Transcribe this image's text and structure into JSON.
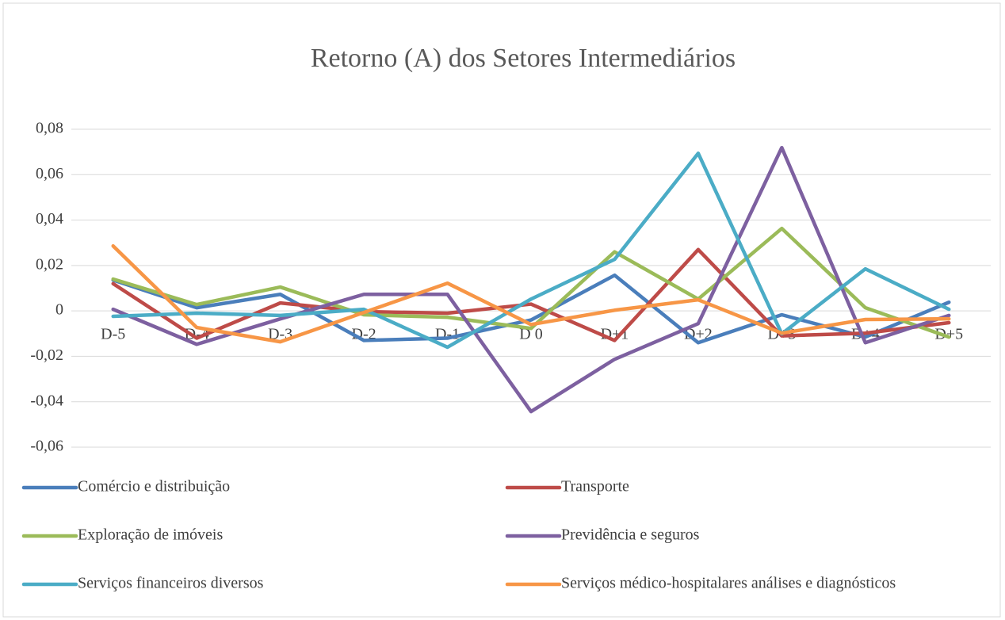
{
  "chart_data": {
    "type": "line",
    "title": "Retorno (A) dos Setores Intermediários",
    "categories": [
      "D-5",
      "D-4",
      "D-3",
      "D-2",
      "D-1",
      "D 0",
      "D+1",
      "D+2",
      "D+3",
      "D+4",
      "D+5"
    ],
    "series": [
      {
        "name": "Comércio e distribuição",
        "color": "#4a7ebb",
        "values": [
          0.0136,
          0.0014,
          0.0073,
          -0.013,
          -0.012,
          -0.004,
          0.0157,
          -0.014,
          -0.0017,
          -0.0115,
          0.0038
        ]
      },
      {
        "name": "Transporte",
        "color": "#be4b48",
        "values": [
          0.012,
          -0.012,
          0.0035,
          -0.0003,
          -0.001,
          0.003,
          -0.013,
          0.027,
          -0.011,
          -0.0098,
          -0.0052
        ]
      },
      {
        "name": "Exploração de imóveis",
        "color": "#9bbb59",
        "values": [
          0.014,
          0.0028,
          0.0105,
          -0.0017,
          -0.0028,
          -0.0077,
          0.026,
          0.0052,
          0.0363,
          0.0014,
          -0.0115
        ]
      },
      {
        "name": "Previdência e seguros",
        "color": "#7d60a0",
        "values": [
          0.0007,
          -0.0147,
          -0.0035,
          0.0073,
          0.0073,
          -0.0443,
          -0.0213,
          -0.0056,
          0.0719,
          -0.014,
          -0.002
        ]
      },
      {
        "name": "Serviços financeiros diversos",
        "color": "#4bacc6",
        "values": [
          -0.0024,
          -0.001,
          -0.002,
          0.0007,
          -0.016,
          0.0052,
          0.0227,
          0.0694,
          -0.0101,
          0.0185,
          0.0007
        ]
      },
      {
        "name": "Serviços médico-hospitalares análises e diagnósticos",
        "color": "#f79646",
        "values": [
          0.0286,
          -0.0073,
          -0.0136,
          -0.0007,
          0.0122,
          -0.006,
          0.0003,
          0.0049,
          -0.0098,
          -0.0038,
          -0.0035
        ]
      }
    ],
    "ylim": [
      -0.06,
      0.08
    ],
    "yticks": [
      {
        "value": -0.06,
        "label": "-0,06"
      },
      {
        "value": -0.04,
        "label": "-0,04"
      },
      {
        "value": -0.02,
        "label": "-0,02"
      },
      0,
      {
        "value": 0.02,
        "label": "0,02"
      },
      {
        "value": 0.04,
        "label": "0,04"
      },
      {
        "value": 0.06,
        "label": "0,06"
      },
      {
        "value": 0.08,
        "label": "0,08"
      }
    ],
    "grid": true,
    "legend": "bottom"
  }
}
